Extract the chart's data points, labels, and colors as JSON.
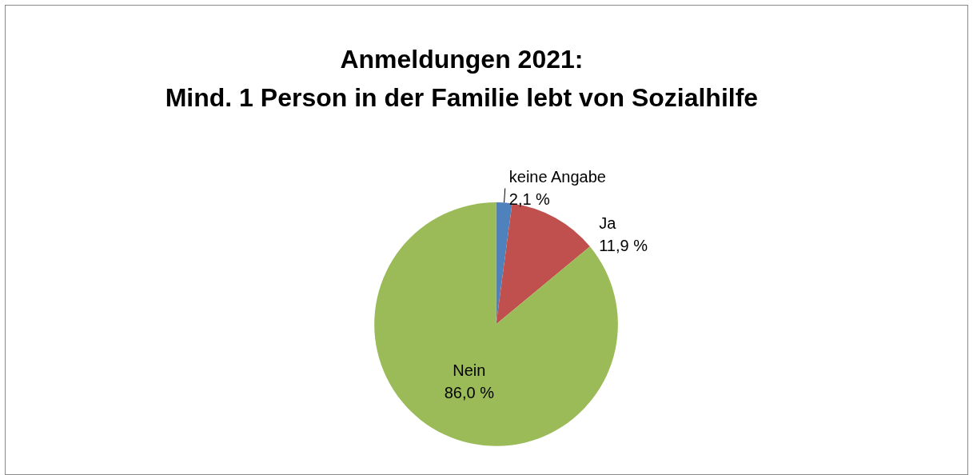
{
  "chart_data": {
    "type": "pie",
    "title": "Anmeldungen 2021:\nMind. 1 Person in der Familie lebt von Sozialhilfe",
    "categories": [
      "keine Angabe",
      "Ja",
      "Nein"
    ],
    "values": [
      2.1,
      11.9,
      86.0
    ],
    "value_labels": [
      "2,1 %",
      "11,9 %",
      "86,0 %"
    ],
    "colors": [
      "#4f81bd",
      "#c0504d",
      "#9bbb59"
    ],
    "legend": false
  }
}
